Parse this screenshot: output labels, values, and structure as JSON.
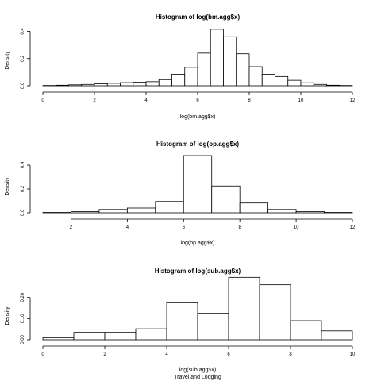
{
  "figure": {
    "caption": "Travel and Lodging",
    "colors": {
      "background": "#ffffff",
      "bar_fill": "#ffffff",
      "stroke": "#000000"
    }
  },
  "chart_data": [
    {
      "type": "bar",
      "title": "Histogram of log(bm.agg$x)",
      "xlabel": "log(bm.agg$x)",
      "ylabel": "Density",
      "xlim": [
        0,
        12
      ],
      "ylim": [
        0,
        0.42
      ],
      "xticks": [
        "0",
        "2",
        "4",
        "6",
        "8",
        "10",
        "12"
      ],
      "yticks": [
        "0.0",
        "0.2",
        "0.4"
      ],
      "bin_edges": [
        0,
        0.5,
        1,
        1.5,
        2,
        2.5,
        3,
        3.5,
        4,
        4.5,
        5,
        5.5,
        6,
        6.5,
        7,
        7.5,
        8,
        8.5,
        9,
        9.5,
        10,
        10.5,
        11,
        11.5,
        12
      ],
      "values": [
        0.002,
        0.004,
        0.007,
        0.01,
        0.014,
        0.018,
        0.023,
        0.026,
        0.03,
        0.045,
        0.085,
        0.135,
        0.24,
        0.415,
        0.36,
        0.235,
        0.14,
        0.085,
        0.068,
        0.04,
        0.022,
        0.01,
        0.004,
        0.002
      ]
    },
    {
      "type": "bar",
      "title": "Histogram of log(op.agg$x)",
      "xlabel": "log(op.agg$x)",
      "ylabel": "Density",
      "xlim": [
        1,
        12
      ],
      "ylim": [
        0,
        0.48
      ],
      "xticks": [
        "2",
        "4",
        "6",
        "8",
        "10",
        "12"
      ],
      "yticks": [
        "0.0",
        "0.2",
        "0.4"
      ],
      "bin_edges": [
        1,
        2,
        3,
        4,
        5,
        6,
        7,
        8,
        9,
        10,
        11,
        12
      ],
      "values": [
        0.003,
        0.01,
        0.028,
        0.04,
        0.095,
        0.48,
        0.225,
        0.082,
        0.028,
        0.01,
        0.003
      ]
    },
    {
      "type": "bar",
      "title": "Histogram of log(sub.agg$x)",
      "xlabel": "log(sub.agg$x)",
      "ylabel": "Density",
      "xlim": [
        0,
        10
      ],
      "ylim": [
        0,
        0.27
      ],
      "xticks": [
        "0",
        "2",
        "4",
        "6",
        "8",
        "10"
      ],
      "yticks": [
        "0.00",
        "0.10",
        "0.20"
      ],
      "bin_edges": [
        0,
        1,
        2,
        3,
        4,
        5,
        6,
        7,
        8,
        9,
        10
      ],
      "values": [
        0.01,
        0.035,
        0.035,
        0.052,
        0.175,
        0.125,
        0.295,
        0.26,
        0.09,
        0.042
      ]
    }
  ]
}
